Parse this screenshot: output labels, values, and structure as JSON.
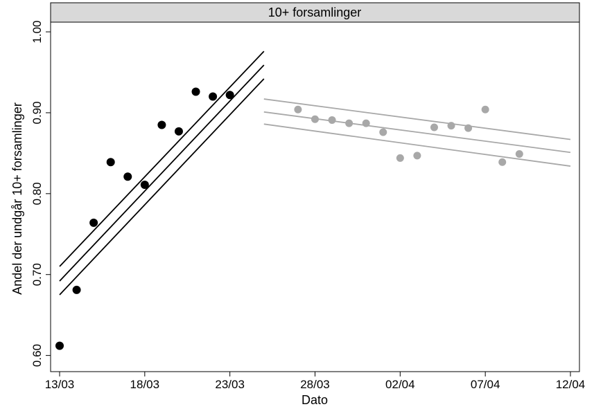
{
  "chart_data": {
    "type": "scatter",
    "title": "10+ forsamlinger",
    "xlabel": "Dato",
    "ylabel": "Andel der undgår 10+ forsamlinger",
    "x_ticks": [
      "13/03",
      "18/03",
      "23/03",
      "28/03",
      "02/04",
      "07/04",
      "12/04"
    ],
    "y_ticks": [
      "0.60",
      "0.70",
      "0.80",
      "0.90",
      "1.00"
    ],
    "ylim": [
      0.58,
      1.012
    ],
    "xlim": [
      "2020-03-13",
      "2020-04-12"
    ],
    "grid": false,
    "series": [
      {
        "color": "#000000",
        "points": [
          {
            "x": "2020-03-13",
            "y": 0.612
          },
          {
            "x": "2020-03-14",
            "y": 0.681
          },
          {
            "x": "2020-03-15",
            "y": 0.764
          },
          {
            "x": "2020-03-16",
            "y": 0.839
          },
          {
            "x": "2020-03-17",
            "y": 0.821
          },
          {
            "x": "2020-03-18",
            "y": 0.811
          },
          {
            "x": "2020-03-19",
            "y": 0.885
          },
          {
            "x": "2020-03-20",
            "y": 0.877
          },
          {
            "x": "2020-03-21",
            "y": 0.926
          },
          {
            "x": "2020-03-22",
            "y": 0.92
          },
          {
            "x": "2020-03-23",
            "y": 0.922
          }
        ],
        "fit": {
          "x": [
            "2020-03-13",
            "2020-03-25"
          ],
          "y": [
            0.692,
            0.959
          ]
        },
        "ci_upper": {
          "x": [
            "2020-03-13",
            "2020-03-25"
          ],
          "y": [
            0.71,
            0.976
          ]
        },
        "ci_lower": {
          "x": [
            "2020-03-13",
            "2020-03-25"
          ],
          "y": [
            0.675,
            0.942
          ]
        }
      },
      {
        "color": "#a8a8a8",
        "points": [
          {
            "x": "2020-03-27",
            "y": 0.904
          },
          {
            "x": "2020-03-28",
            "y": 0.892
          },
          {
            "x": "2020-03-29",
            "y": 0.891
          },
          {
            "x": "2020-03-30",
            "y": 0.887
          },
          {
            "x": "2020-03-31",
            "y": 0.887
          },
          {
            "x": "2020-04-01",
            "y": 0.876
          },
          {
            "x": "2020-04-02",
            "y": 0.844
          },
          {
            "x": "2020-04-03",
            "y": 0.847
          },
          {
            "x": "2020-04-04",
            "y": 0.882
          },
          {
            "x": "2020-04-05",
            "y": 0.884
          },
          {
            "x": "2020-04-06",
            "y": 0.881
          },
          {
            "x": "2020-04-07",
            "y": 0.904
          },
          {
            "x": "2020-04-08",
            "y": 0.839
          },
          {
            "x": "2020-04-09",
            "y": 0.849
          }
        ],
        "fit": {
          "x": [
            "2020-03-25",
            "2020-04-12"
          ],
          "y": [
            0.901,
            0.851
          ]
        },
        "ci_upper": {
          "x": [
            "2020-03-25",
            "2020-04-12"
          ],
          "y": [
            0.917,
            0.867
          ]
        },
        "ci_lower": {
          "x": [
            "2020-03-25",
            "2020-04-12"
          ],
          "y": [
            0.886,
            0.834
          ]
        }
      }
    ]
  }
}
